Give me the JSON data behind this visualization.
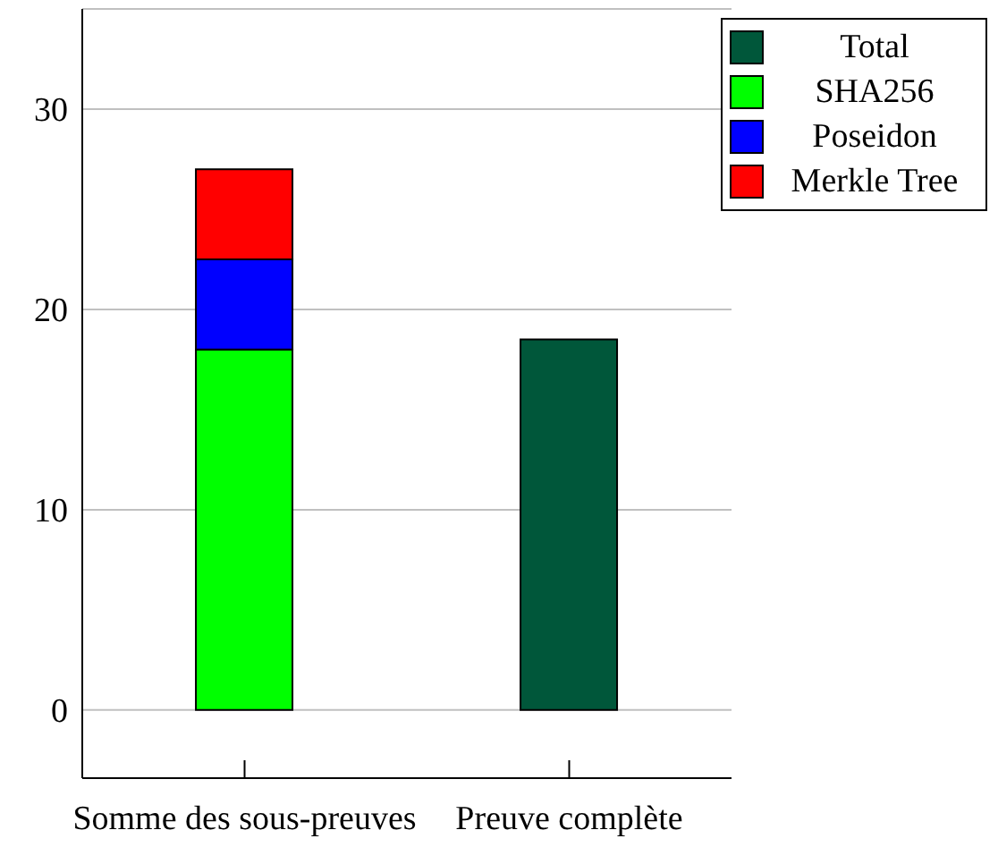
{
  "chart_data": {
    "type": "bar",
    "stacked": true,
    "categories": [
      "Somme des sous-preuves",
      "Preuve complète"
    ],
    "series": [
      {
        "name": "Total",
        "color": "#00573a",
        "values": [
          null,
          18.5
        ]
      },
      {
        "name": "SHA256",
        "color": "#00ff00",
        "values": [
          18,
          null
        ]
      },
      {
        "name": "Poseidon",
        "color": "#0000ff",
        "values": [
          4.5,
          null
        ]
      },
      {
        "name": "Merkle Tree",
        "color": "#ff0000",
        "values": [
          4.5,
          null
        ]
      }
    ],
    "ylim": [
      -3.4,
      35
    ],
    "yticks": [
      0,
      10,
      20,
      30
    ],
    "grid": "y",
    "legend": "top right"
  }
}
